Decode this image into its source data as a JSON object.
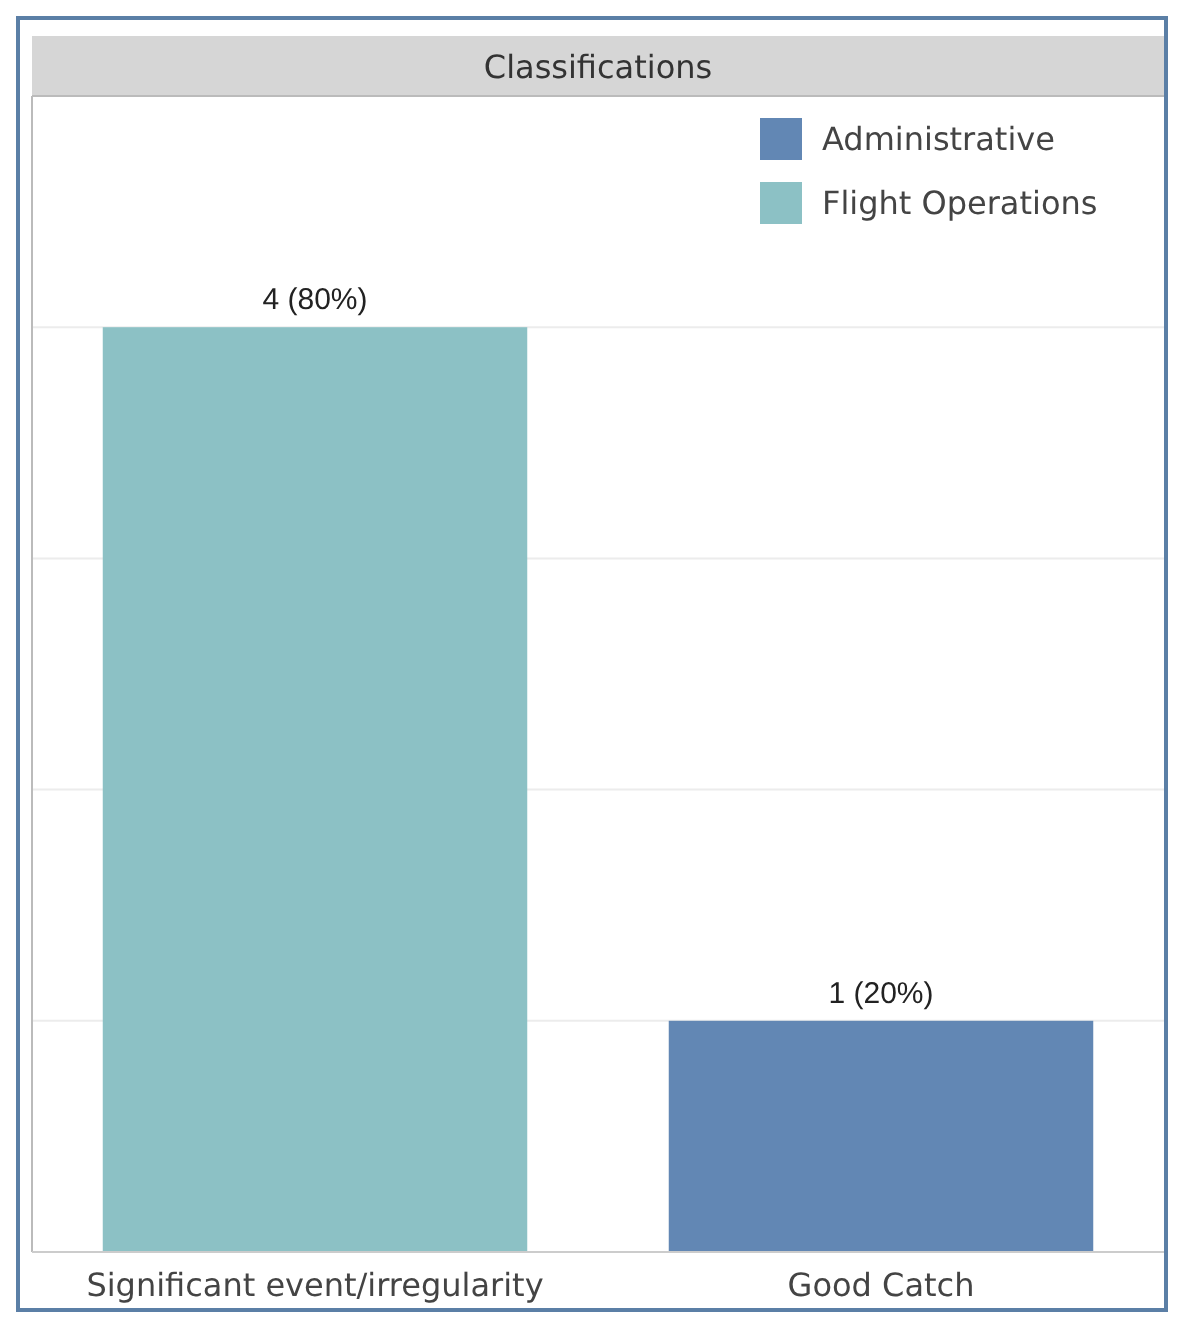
{
  "chart_data": {
    "type": "bar",
    "title": "Classifications",
    "categories": [
      "Significant event/irregularity",
      "Good Catch"
    ],
    "stacked": true,
    "series": [
      {
        "name": "Administrative",
        "color": "#6287b4",
        "values": [
          null,
          1
        ],
        "value_labels": [
          null,
          "1 (20%)"
        ]
      },
      {
        "name": "Flight Operations",
        "color": "#8cc1c5",
        "values": [
          4,
          null
        ],
        "value_labels": [
          "4 (80%)",
          null
        ]
      }
    ],
    "ylim": [
      0,
      5
    ],
    "yticks": [
      {
        "value": 1,
        "label": null
      },
      {
        "value": 2,
        "label": null
      },
      {
        "value": 3,
        "label": null
      },
      {
        "value": 4,
        "label": null
      }
    ],
    "grid": "y",
    "tick_labels": "x",
    "legend": "top right"
  }
}
